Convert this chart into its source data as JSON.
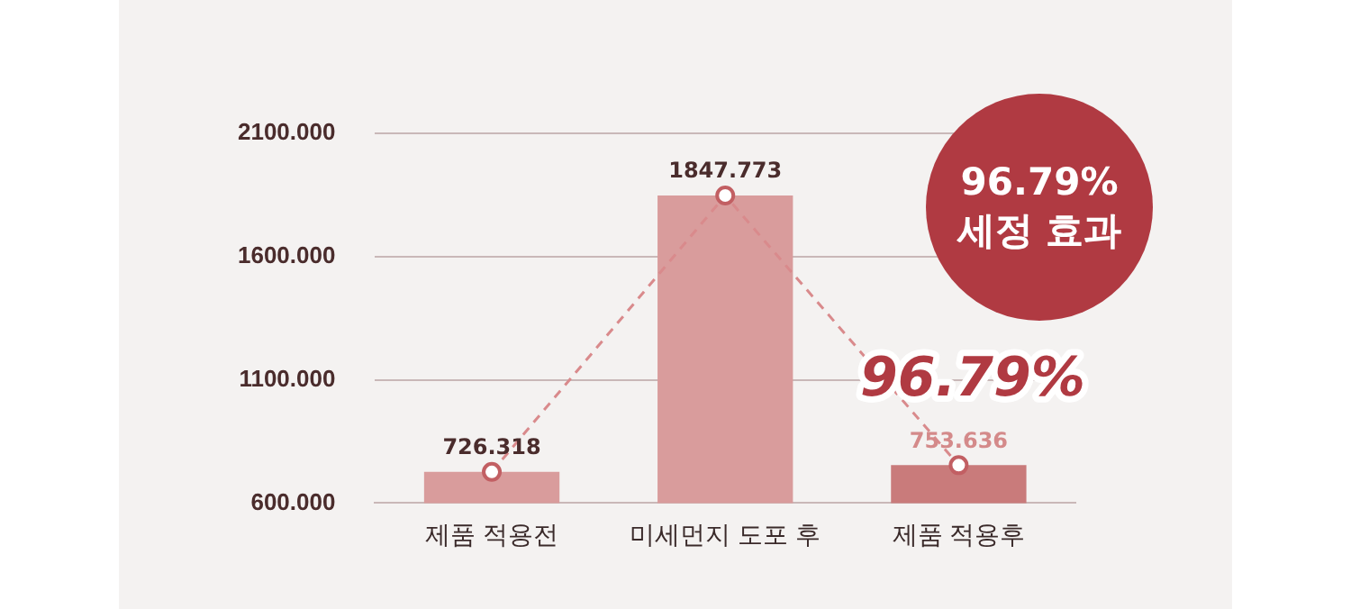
{
  "chart_data": {
    "type": "bar",
    "categories": [
      "제품 적용전",
      "미세먼지 도포 후",
      "제품 적용후"
    ],
    "series": [
      {
        "colors": [
          "#d99c9c",
          "#d99c9c",
          "#c97b7b"
        ],
        "values": [
          726.318,
          1847.773,
          753.636
        ],
        "value_labels": [
          "726.318",
          "1847.773",
          "753.636"
        ]
      },
      {
        "type": "line",
        "color": "#d98a8c",
        "values": [
          726.318,
          1847.773,
          753.636
        ],
        "marker": "circle",
        "line_style": "dashed"
      }
    ],
    "ylim": [
      600,
      2100
    ],
    "yticks": [
      {
        "value": 600,
        "label": "600.000"
      },
      {
        "value": 1100,
        "label": "1100.000"
      },
      {
        "value": 1600,
        "label": "1600.000"
      },
      {
        "value": 2100,
        "label": "2100.000"
      }
    ],
    "grid": "y",
    "legend": false,
    "annotations": [
      "96.79%",
      "96.79%\n세정 효과"
    ]
  }
}
